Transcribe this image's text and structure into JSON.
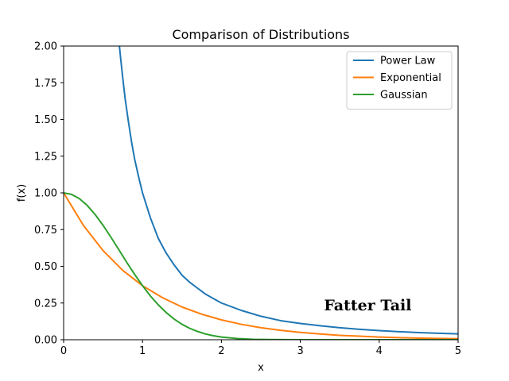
{
  "chart_data": {
    "type": "line",
    "title": "Comparison of Distributions",
    "xlabel": "x",
    "ylabel": "f(x)",
    "xlim": [
      0,
      5
    ],
    "ylim": [
      0,
      2
    ],
    "x_ticks": [
      "0",
      "1",
      "2",
      "3",
      "4",
      "5"
    ],
    "y_ticks": [
      "0.00",
      "0.25",
      "0.50",
      "0.75",
      "1.00",
      "1.25",
      "1.50",
      "1.75",
      "2.00"
    ],
    "grid": false,
    "legend_position": "top-right",
    "annotation": {
      "text": "Fatter Tail",
      "x": 3.3,
      "y": 0.2
    },
    "series": [
      {
        "name": "Power Law",
        "color": "#1f77b4",
        "x": [
          0.7,
          0.72,
          0.75,
          0.78,
          0.82,
          0.86,
          0.9,
          0.95,
          1.0,
          1.1,
          1.2,
          1.3,
          1.4,
          1.5,
          1.6,
          1.7,
          1.8,
          1.9,
          2.0,
          2.25,
          2.5,
          2.75,
          3.0,
          3.25,
          3.5,
          3.75,
          4.0,
          4.25,
          4.5,
          4.75,
          5.0
        ],
        "y": [
          2.04,
          1.93,
          1.78,
          1.64,
          1.49,
          1.35,
          1.23,
          1.11,
          1.0,
          0.83,
          0.69,
          0.59,
          0.51,
          0.44,
          0.39,
          0.35,
          0.31,
          0.28,
          0.25,
          0.2,
          0.16,
          0.13,
          0.111,
          0.095,
          0.082,
          0.071,
          0.0625,
          0.055,
          0.049,
          0.044,
          0.04
        ]
      },
      {
        "name": "Exponential",
        "color": "#ff7f0e",
        "x": [
          0.0,
          0.25,
          0.5,
          0.75,
          1.0,
          1.25,
          1.5,
          1.75,
          2.0,
          2.25,
          2.5,
          2.75,
          3.0,
          3.25,
          3.5,
          3.75,
          4.0,
          4.25,
          4.5,
          4.75,
          5.0
        ],
        "y": [
          1.0,
          0.779,
          0.607,
          0.472,
          0.368,
          0.287,
          0.223,
          0.174,
          0.135,
          0.105,
          0.082,
          0.064,
          0.05,
          0.039,
          0.03,
          0.024,
          0.018,
          0.014,
          0.011,
          0.009,
          0.007
        ]
      },
      {
        "name": "Gaussian",
        "color": "#2ca02c",
        "x": [
          0.0,
          0.1,
          0.2,
          0.3,
          0.4,
          0.5,
          0.6,
          0.7,
          0.8,
          0.9,
          1.0,
          1.1,
          1.2,
          1.3,
          1.4,
          1.5,
          1.6,
          1.7,
          1.8,
          1.9,
          2.0,
          2.2,
          2.4,
          2.6,
          2.8,
          3.0,
          3.5,
          4.0,
          4.5,
          5.0
        ],
        "y": [
          1.0,
          0.99,
          0.961,
          0.914,
          0.852,
          0.779,
          0.698,
          0.613,
          0.527,
          0.445,
          0.368,
          0.298,
          0.237,
          0.185,
          0.141,
          0.105,
          0.077,
          0.056,
          0.039,
          0.027,
          0.018,
          0.008,
          0.003,
          0.001,
          0.0004,
          0.0001,
          0.0,
          0.0,
          0.0,
          0.0
        ]
      }
    ]
  }
}
